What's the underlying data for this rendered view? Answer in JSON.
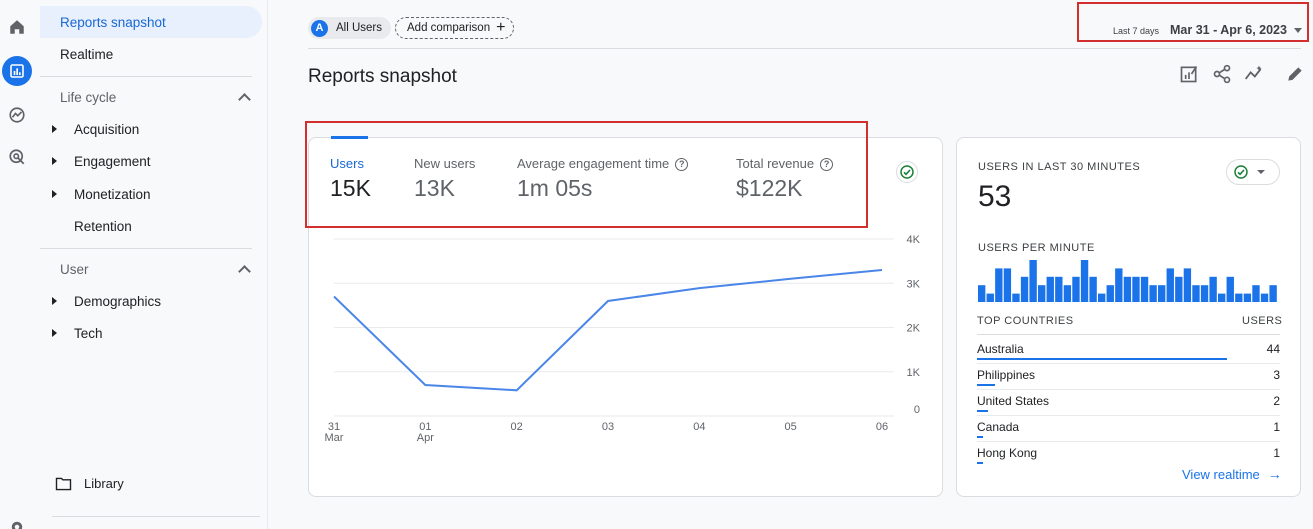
{
  "nav": {
    "reports_snapshot": "Reports snapshot",
    "realtime": "Realtime",
    "lifecycle_title": "Life cycle",
    "acquisition": "Acquisition",
    "engagement": "Engagement",
    "monetization": "Monetization",
    "retention": "Retention",
    "user_title": "User",
    "demographics": "Demographics",
    "tech": "Tech",
    "library": "Library"
  },
  "top": {
    "segment_avatar": "A",
    "segment_label": "All Users",
    "add_comparison": "Add comparison",
    "date_preset": "Last 7 days",
    "date_range": "Mar 31 - Apr 6, 2023"
  },
  "page_title": "Reports snapshot",
  "metrics": [
    {
      "label": "Users",
      "value": "15K"
    },
    {
      "label": "New users",
      "value": "13K"
    },
    {
      "label": "Average engagement time",
      "value": "1m 05s"
    },
    {
      "label": "Total revenue",
      "value": "$122K"
    }
  ],
  "chart_data": {
    "type": "line",
    "x": [
      "31",
      "01",
      "02",
      "03",
      "04",
      "05",
      "06"
    ],
    "x_sublabels": [
      "Mar",
      "Apr",
      "",
      "",
      "",
      "",
      ""
    ],
    "series": [
      {
        "values": [
          2700,
          700,
          580,
          2600,
          2890,
          3100,
          3300
        ]
      }
    ],
    "ylim": [
      0,
      4000
    ],
    "yticks": [
      "0",
      "1K",
      "2K",
      "3K",
      "4K"
    ],
    "grid": true,
    "color": "#4a86e8"
  },
  "realtime": {
    "users_caption": "USERS IN LAST 30 MINUTES",
    "users_count": "53",
    "per_minute_caption": "USERS PER MINUTE",
    "per_minute_values": [
      2,
      1,
      4,
      4,
      1,
      3,
      5,
      2,
      3,
      3,
      2,
      3,
      5,
      3,
      1,
      2,
      4,
      3,
      3,
      3,
      2,
      2,
      4,
      3,
      4,
      2,
      2,
      3,
      1,
      3,
      1,
      1,
      2,
      1,
      2
    ],
    "top_countries_caption": "TOP COUNTRIES",
    "users_col": "USERS",
    "countries": [
      {
        "name": "Australia",
        "value": "44",
        "share": 1.0
      },
      {
        "name": "Philippines",
        "value": "3",
        "share": 0.07
      },
      {
        "name": "United States",
        "value": "2",
        "share": 0.045
      },
      {
        "name": "Canada",
        "value": "1",
        "share": 0.023
      },
      {
        "name": "Hong Kong",
        "value": "1",
        "share": 0.023
      }
    ],
    "view_realtime": "View realtime"
  },
  "colors": {
    "accent": "#1a73e8",
    "highlight_box": "#d32f2f",
    "success": "#188038"
  }
}
